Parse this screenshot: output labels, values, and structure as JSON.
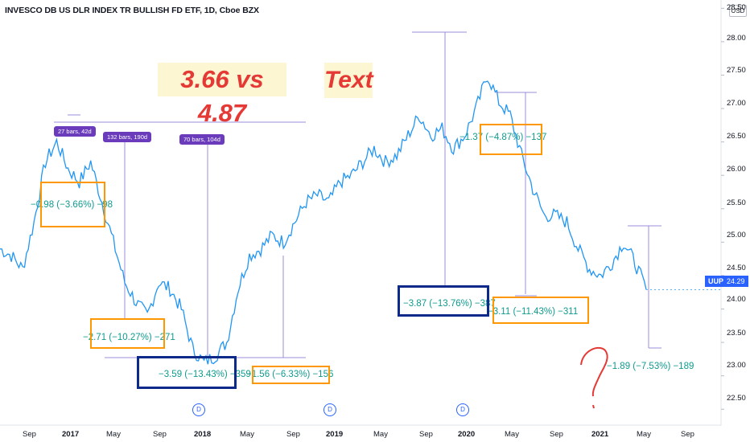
{
  "header": {
    "title": "INVESCO DB US DLR INDEX TR BULLISH FD ETF, 1D, Cboe BZX",
    "currency": "USD"
  },
  "annotations": {
    "text1": "3.66 vs 4.87",
    "text2": "Text"
  },
  "price_tag": {
    "symbol": "UUP",
    "value": "24.29"
  },
  "y_axis_labels": [
    "28.50",
    "28.00",
    "27.50",
    "27.00",
    "26.50",
    "26.00",
    "25.50",
    "25.00",
    "24.50",
    "24.00",
    "23.50",
    "23.00",
    "22.50"
  ],
  "x_axis_labels": [
    "Sep",
    "2017",
    "May",
    "Sep",
    "2018",
    "May",
    "Sep",
    "2019",
    "May",
    "Sep",
    "2020",
    "May",
    "Sep",
    "2021",
    "May",
    "Sep"
  ],
  "dividend_marker": "D",
  "chips": [
    "27 bars, 42d",
    "132 bars, 190d",
    "70 bars, 104d"
  ],
  "measures": [
    "−0.98 (−3.66%) −98",
    "−2.71 (−10.27%) −271",
    "−3.59 (−13.43%) −359",
    "−1.56 (−6.33%) −156",
    "−1.37 (−4.87%) −137",
    "−3.87 (−13.76%) −387",
    "−3.11 (−11.43%) −311",
    "−1.89 (−7.53%) −189"
  ],
  "chart_data": {
    "type": "line",
    "series": [
      {
        "name": "UUP",
        "x": [
          "2016-08",
          "2016-09",
          "2016-10",
          "2016-11",
          "2016-12",
          "2017-01",
          "2017-02",
          "2017-03",
          "2017-04",
          "2017-05",
          "2017-06",
          "2017-07",
          "2017-08",
          "2017-09",
          "2017-10",
          "2017-11",
          "2017-12",
          "2018-01",
          "2018-02",
          "2018-03",
          "2018-04",
          "2018-05",
          "2018-06",
          "2018-07",
          "2018-08",
          "2018-09",
          "2018-10",
          "2018-11",
          "2018-12",
          "2019-01",
          "2019-02",
          "2019-03",
          "2019-04",
          "2019-05",
          "2019-06",
          "2019-07",
          "2019-08",
          "2019-09",
          "2019-10",
          "2019-11",
          "2019-12",
          "2020-01",
          "2020-02",
          "2020-03",
          "2020-04",
          "2020-05",
          "2020-06",
          "2020-07",
          "2020-08",
          "2020-09",
          "2020-10",
          "2020-11",
          "2020-12",
          "2021-01",
          "2021-02",
          "2021-03",
          "2021-04",
          "2021-05"
        ],
        "values": [
          24.9,
          24.8,
          24.6,
          25.3,
          26.2,
          26.5,
          26.1,
          25.9,
          26.2,
          25.6,
          25.0,
          24.4,
          24.1,
          23.9,
          24.4,
          24.3,
          24.0,
          23.4,
          23.2,
          23.3,
          23.5,
          24.3,
          24.8,
          24.9,
          25.1,
          25.0,
          25.3,
          25.6,
          25.7,
          25.6,
          25.9,
          26.0,
          26.2,
          26.4,
          26.2,
          26.3,
          26.6,
          26.9,
          26.6,
          26.7,
          26.4,
          26.6,
          27.0,
          27.5,
          27.1,
          26.9,
          26.3,
          25.8,
          25.4,
          25.4,
          25.3,
          24.9,
          24.6,
          24.5,
          24.7,
          25.0,
          24.7,
          24.29
        ]
      }
    ],
    "ylim": [
      22.25,
      28.6
    ],
    "y_ticks": [
      22.5,
      23.0,
      23.5,
      24.0,
      24.5,
      25.0,
      25.5,
      26.0,
      26.5,
      27.0,
      27.5,
      28.0,
      28.5
    ],
    "grid": false,
    "last_value": 24.29
  }
}
